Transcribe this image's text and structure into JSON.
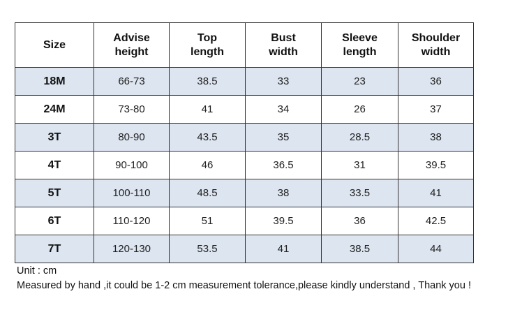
{
  "size_chart": {
    "headers": [
      [
        "Size"
      ],
      [
        "Advise",
        "height"
      ],
      [
        "Top",
        "length"
      ],
      [
        "Bust",
        "width"
      ],
      [
        "Sleeve",
        "length"
      ],
      [
        "Shoulder",
        "width"
      ]
    ],
    "rows": [
      [
        "18M",
        "66-73",
        "38.5",
        "33",
        "23",
        "36"
      ],
      [
        "24M",
        "73-80",
        "41",
        "34",
        "26",
        "37"
      ],
      [
        "3T",
        "80-90",
        "43.5",
        "35",
        "28.5",
        "38"
      ],
      [
        "4T",
        "90-100",
        "46",
        "36.5",
        "31",
        "39.5"
      ],
      [
        "5T",
        "100-110",
        "48.5",
        "38",
        "33.5",
        "41"
      ],
      [
        "6T",
        "110-120",
        "51",
        "39.5",
        "36",
        "42.5"
      ],
      [
        "7T",
        "120-130",
        "53.5",
        "41",
        "38.5",
        "44"
      ]
    ],
    "shaded_row_color": "#dde5f0",
    "border_color": "#333333"
  },
  "notes": {
    "unit": "Unit : cm",
    "disclaimer": "Measured by hand ,it could be 1-2 cm measurement tolerance,please kindly understand , Thank you !"
  }
}
